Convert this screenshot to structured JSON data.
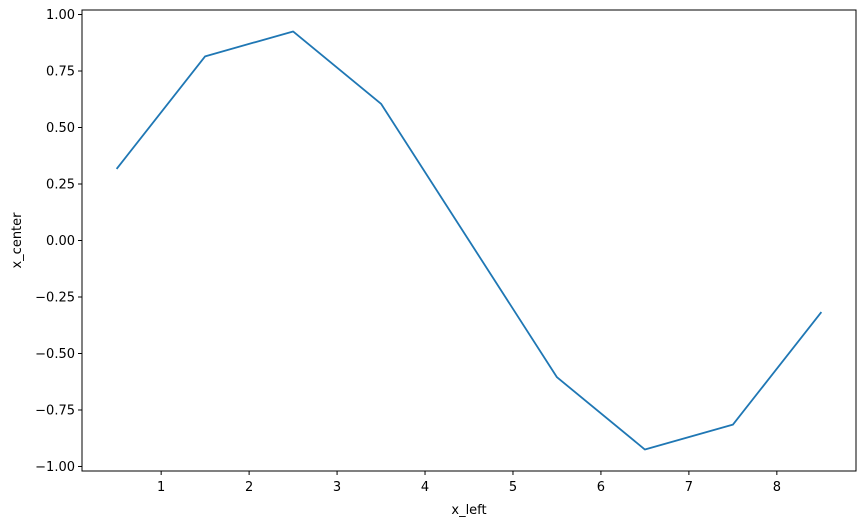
{
  "chart_data": {
    "type": "line",
    "title": "",
    "xlabel": "x_left",
    "ylabel": "x_center",
    "xlim": [
      0.1,
      8.9
    ],
    "ylim": [
      -1.02,
      1.02
    ],
    "xticks": [
      1,
      2,
      3,
      4,
      5,
      6,
      7,
      8
    ],
    "xtick_labels": [
      "1",
      "2",
      "3",
      "4",
      "5",
      "6",
      "7",
      "8"
    ],
    "yticks": [
      -1.0,
      -0.75,
      -0.5,
      -0.25,
      0.0,
      0.25,
      0.5,
      0.75,
      1.0
    ],
    "ytick_labels": [
      "−1.00",
      "−0.75",
      "−0.50",
      "−0.25",
      "0.00",
      "0.25",
      "0.50",
      "0.75",
      "1.00"
    ],
    "grid": false,
    "series": [
      {
        "color": "#1f77b4",
        "x": [
          0.5,
          1.5,
          2.5,
          3.5,
          4.5,
          5.5,
          6.5,
          7.5,
          8.5
        ],
        "y": [
          0.32,
          0.815,
          0.925,
          0.605,
          0.0,
          -0.605,
          -0.925,
          -0.815,
          -0.32
        ]
      }
    ]
  }
}
